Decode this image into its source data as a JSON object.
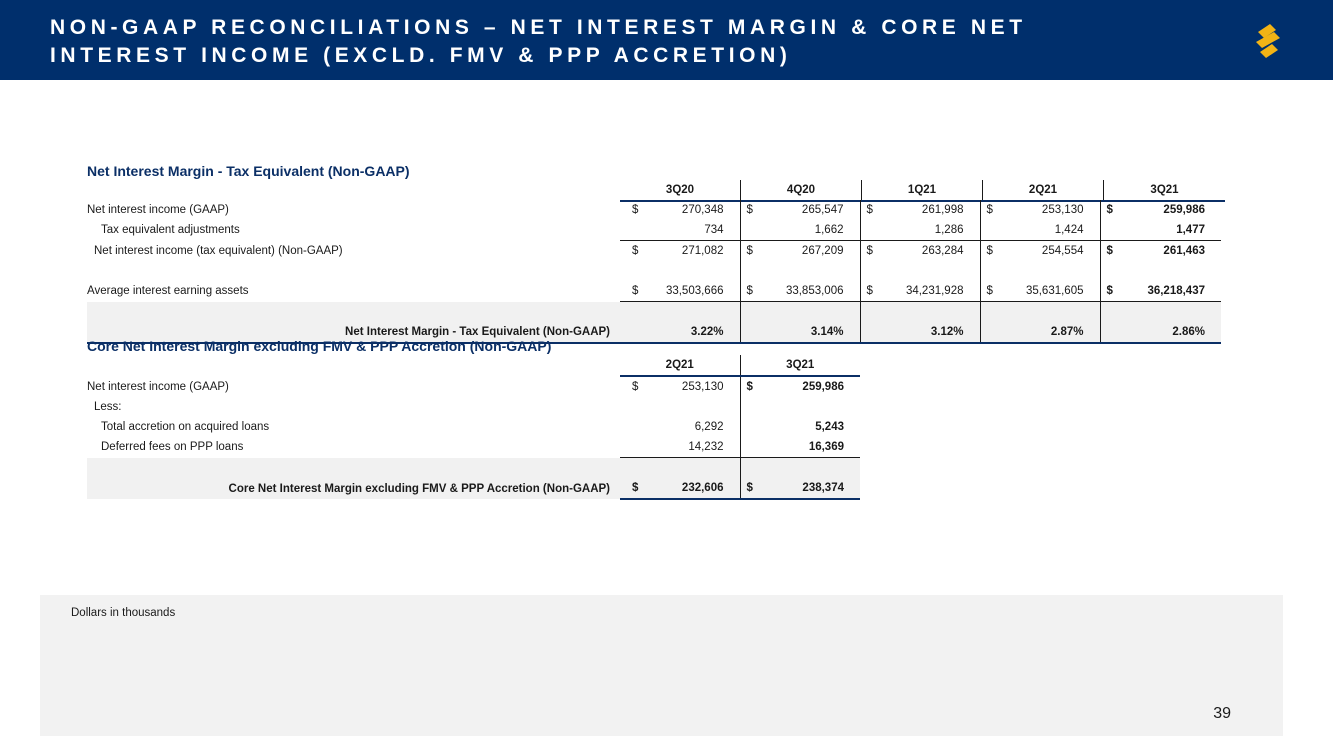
{
  "header": {
    "title": "NON-GAAP RECONCILIATIONS – NET INTEREST MARGIN & CORE NET INTEREST INCOME (EXCLD. FMV & PPP ACCRETION)",
    "logo_icon": "brand-s-logo-icon",
    "bg_color": "#002f6c",
    "logo_color": "#f2b315"
  },
  "nim_table": {
    "title": "Net Interest Margin - Tax Equivalent (Non-GAAP)",
    "columns": [
      "3Q20",
      "4Q20",
      "1Q21",
      "2Q21",
      "3Q21"
    ],
    "rows": [
      {
        "label": "Net interest income (GAAP)",
        "cur": [
          "$",
          "$",
          "$",
          "$",
          "$"
        ],
        "values": [
          "270,348",
          "265,547",
          "261,998",
          "253,130",
          "259,986"
        ]
      },
      {
        "label": "Tax equivalent adjustments",
        "cur": [
          "",
          "",
          "",
          "",
          ""
        ],
        "values": [
          "734",
          "1,662",
          "1,286",
          "1,424",
          "1,477"
        ]
      },
      {
        "label": "Net interest income (tax equivalent) (Non-GAAP)",
        "cur": [
          "$",
          "$",
          "$",
          "$",
          "$"
        ],
        "values": [
          "271,082",
          "267,209",
          "263,284",
          "254,554",
          "261,463"
        ]
      },
      {
        "label": "Average interest earning assets",
        "cur": [
          "$",
          "$",
          "$",
          "$",
          "$"
        ],
        "values": [
          "33,503,666",
          "33,853,006",
          "34,231,928",
          "35,631,605",
          "36,218,437"
        ]
      }
    ],
    "total": {
      "label": "Net Interest Margin - Tax Equivalent (Non-GAAP)",
      "values": [
        "3.22%",
        "3.14%",
        "3.12%",
        "2.87%",
        "2.86%"
      ]
    }
  },
  "core_table": {
    "title": "Core Net Interest Margin excluding FMV & PPP Accretion (Non-GAAP)",
    "columns": [
      "2Q21",
      "3Q21"
    ],
    "rows": [
      {
        "label": "Net interest income (GAAP)",
        "cur": [
          "$",
          "$"
        ],
        "values": [
          "253,130",
          "259,986"
        ]
      },
      {
        "label": "Less:",
        "cur": [
          "",
          ""
        ],
        "values": [
          "",
          ""
        ]
      },
      {
        "label": "Total accretion on acquired loans",
        "cur": [
          "",
          ""
        ],
        "values": [
          "6,292",
          "5,243"
        ]
      },
      {
        "label": "Deferred fees on PPP loans",
        "cur": [
          "",
          ""
        ],
        "values": [
          "14,232",
          "16,369"
        ]
      }
    ],
    "total": {
      "label": "Core Net Interest Margin excluding FMV & PPP Accretion (Non-GAAP)",
      "cur": [
        "$",
        "$"
      ],
      "values": [
        "232,606",
        "238,374"
      ]
    }
  },
  "footnote": "Dollars in thousands",
  "page_number": "39"
}
